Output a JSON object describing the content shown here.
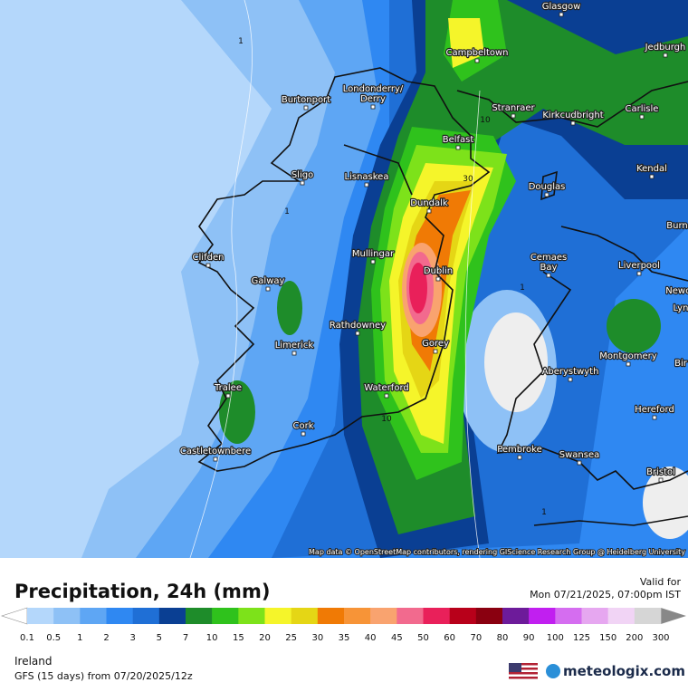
{
  "map": {
    "cities": [
      "Glasgow",
      "Jedburgh",
      "Campbeltown",
      "Burtonport",
      "Londonderry/",
      "Derry",
      "Stranraer",
      "Kirkcudbright",
      "Carlisle",
      "Belfast",
      "Kendal",
      "Sligo",
      "Lisnaskea",
      "Douglas",
      "Dundalk",
      "Burn",
      "Clifden",
      "Mullingar",
      "Dublin",
      "Cemaes",
      "Bay",
      "Liverpool",
      "Galway",
      "Newca",
      "Lyn",
      "Rathdowney",
      "Limerick",
      "Gorey",
      "Montgomery",
      "Bir",
      "Aberystwyth",
      "Tralee",
      "Waterford",
      "Hereford",
      "Cork",
      "Pembroke",
      "Swansea",
      "Castletownbere",
      "Bristol"
    ],
    "contour_labels": [
      "1",
      "10",
      "30",
      "1",
      "10",
      "1",
      "1"
    ],
    "attribution": "Map data © OpenStreetMap contributors, rendering GIScience Research Group @ Heidelberg University"
  },
  "legend": {
    "title": "Precipitation, 24h (mm)",
    "valid_label": "Valid for",
    "valid_time": "Mon 07/21/2025, 07:00pm IST",
    "ticks": [
      0.1,
      0.5,
      1,
      2,
      3,
      5,
      7,
      10,
      15,
      20,
      25,
      30,
      35,
      40,
      45,
      50,
      60,
      70,
      80,
      90,
      100,
      125,
      150,
      200,
      300
    ],
    "colors": [
      "#b4d7fb",
      "#8ec1f6",
      "#5ea6f4",
      "#2f88f2",
      "#1f6fd6",
      "#0a3f93",
      "#1e8c2a",
      "#2fc21c",
      "#7de21a",
      "#f5f52a",
      "#e5d615",
      "#f07a05",
      "#f79437",
      "#f9a36f",
      "#f26a8e",
      "#e9205a",
      "#b8001a",
      "#8a0010",
      "#6d1b9a",
      "#c11ff0",
      "#d56df0",
      "#e6a7f0",
      "#f1d4f5",
      "#d6d6d6"
    ]
  },
  "footer": {
    "region": "Ireland",
    "model": "GFS (15 days) from 07/20/2025/12z",
    "brand": "meteologix.com"
  }
}
